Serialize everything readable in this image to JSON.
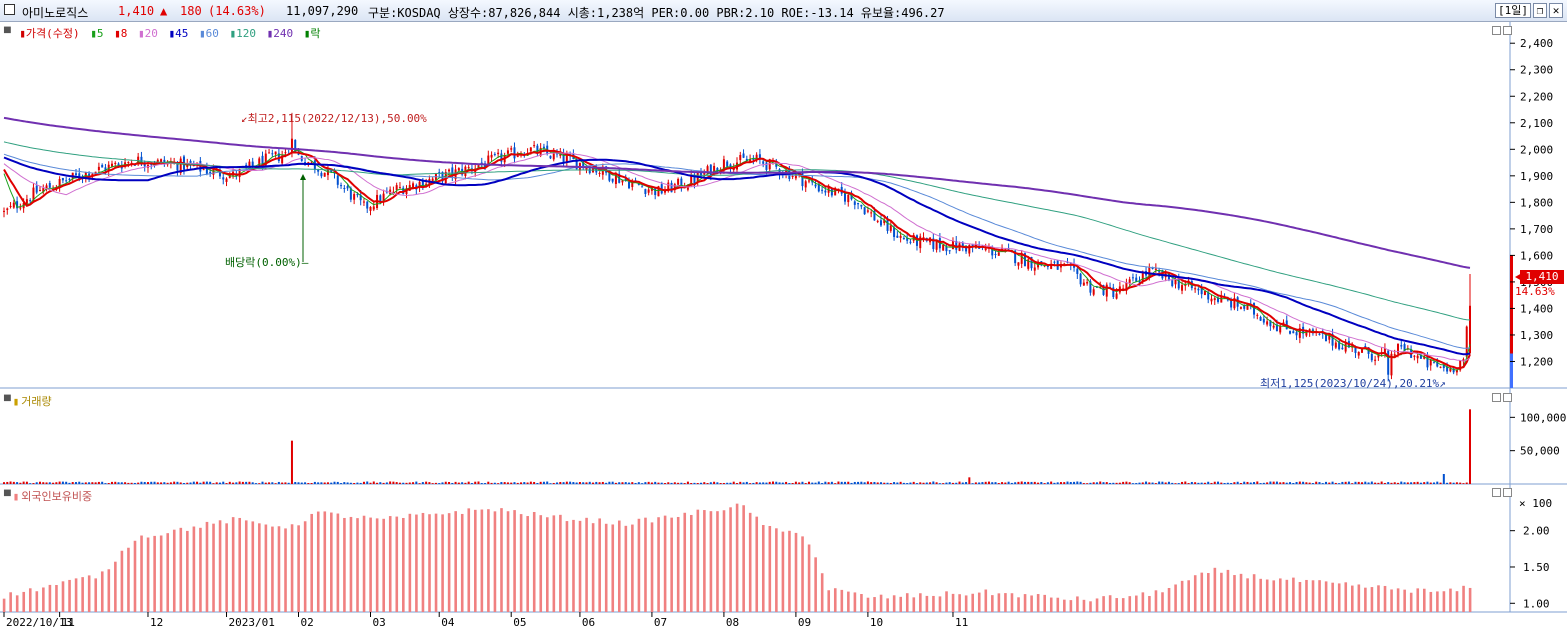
{
  "header": {
    "stock_name": "아미노로직스",
    "price": "1,410",
    "change_arrow": "▲",
    "change": "180",
    "change_pct": "(14.63%)",
    "volume": "11,097,290",
    "info": "구분:KOSDAQ 상장수:87,826,844 시총:1,238억 PER:0.00 PBR:2.10 ROE:-13.14 유보율:496.27",
    "period_button": "[1일]",
    "restore_icon": "restore-window-icon",
    "close_icon": "close-icon",
    "up_color": "#e00000"
  },
  "price_pane": {
    "legend": [
      {
        "label": "가격(수정)",
        "color": "#d00000"
      },
      {
        "label": "5",
        "color": "#1aa01a"
      },
      {
        "label": "8",
        "color": "#e00000"
      },
      {
        "label": "20",
        "color": "#d070d0"
      },
      {
        "label": "45",
        "color": "#0000c0"
      },
      {
        "label": "60",
        "color": "#5a8ad8"
      },
      {
        "label": "120",
        "color": "#30a080"
      },
      {
        "label": "240",
        "color": "#7030b0"
      },
      {
        "label": "락",
        "color": "#008000"
      }
    ],
    "y_ticks": [
      "2,400",
      "2,300",
      "2,200",
      "2,100",
      "2,000",
      "1,900",
      "1,800",
      "1,700",
      "1,600",
      "1,500",
      "1,400",
      "1,300",
      "1,200"
    ],
    "high_annotation": "최고2,115(2022/12/13),50.00%",
    "low_annotation": "최저1,125(2023/10/24),20.21%",
    "dividend_annotation": "배당락(0.00%)",
    "current_price_tag": "1,410",
    "current_pct_tag": "14.63%"
  },
  "volume_pane": {
    "title": "거래량",
    "y_ticks": [
      "100,000",
      "50,000"
    ],
    "unit": "× 100"
  },
  "foreign_pane": {
    "title": "외국인보유비중",
    "y_ticks": [
      "2.00",
      "1.50",
      "1.00"
    ]
  },
  "x_axis": {
    "labels": [
      "2022/10/13",
      "11",
      "12",
      "2023/01",
      "02",
      "03",
      "04",
      "05",
      "06",
      "07",
      "08",
      "09",
      "10",
      "11"
    ]
  },
  "chart_data": {
    "type": "candlestick",
    "price_range": [
      1100,
      2480
    ],
    "high": {
      "value": 2115,
      "date": "2022/12/13"
    },
    "low": {
      "value": 1125,
      "date": "2023/10/24"
    },
    "last_close": 1410,
    "anchors_close": [
      [
        0,
        1760
      ],
      [
        10,
        1840
      ],
      [
        25,
        1910
      ],
      [
        40,
        1960
      ],
      [
        55,
        1940
      ],
      [
        70,
        1900
      ],
      [
        80,
        1960
      ],
      [
        88,
        1990
      ],
      [
        100,
        1900
      ],
      [
        110,
        1780
      ],
      [
        120,
        1850
      ],
      [
        135,
        1900
      ],
      [
        150,
        1960
      ],
      [
        160,
        2000
      ],
      [
        170,
        1970
      ],
      [
        180,
        1930
      ],
      [
        190,
        1880
      ],
      [
        200,
        1840
      ],
      [
        210,
        1880
      ],
      [
        220,
        1950
      ],
      [
        230,
        1960
      ],
      [
        240,
        1910
      ],
      [
        250,
        1850
      ],
      [
        260,
        1810
      ],
      [
        268,
        1720
      ],
      [
        275,
        1660
      ],
      [
        285,
        1640
      ],
      [
        295,
        1630
      ],
      [
        305,
        1610
      ],
      [
        315,
        1570
      ],
      [
        325,
        1550
      ],
      [
        332,
        1480
      ],
      [
        340,
        1460
      ],
      [
        350,
        1540
      ],
      [
        358,
        1500
      ],
      [
        370,
        1440
      ],
      [
        380,
        1400
      ],
      [
        390,
        1330
      ],
      [
        400,
        1300
      ],
      [
        410,
        1260
      ],
      [
        420,
        1220
      ],
      [
        428,
        1250
      ],
      [
        435,
        1190
      ],
      [
        442,
        1170
      ],
      [
        446,
        1210
      ],
      [
        448,
        1410
      ]
    ],
    "volume_spikes": [
      [
        88,
        65000
      ],
      [
        295,
        10000
      ],
      [
        440,
        15000
      ],
      [
        448,
        112000
      ]
    ],
    "foreign_ratio_anchors": [
      [
        0,
        1.1
      ],
      [
        30,
        1.4
      ],
      [
        40,
        1.9
      ],
      [
        70,
        2.15
      ],
      [
        88,
        2.05
      ],
      [
        95,
        2.25
      ],
      [
        115,
        2.15
      ],
      [
        135,
        2.25
      ],
      [
        150,
        2.3
      ],
      [
        165,
        2.2
      ],
      [
        190,
        2.1
      ],
      [
        205,
        2.2
      ],
      [
        225,
        2.35
      ],
      [
        235,
        2.0
      ],
      [
        245,
        1.95
      ],
      [
        252,
        1.2
      ],
      [
        265,
        1.08
      ],
      [
        300,
        1.15
      ],
      [
        330,
        1.05
      ],
      [
        350,
        1.12
      ],
      [
        370,
        1.45
      ],
      [
        385,
        1.35
      ],
      [
        410,
        1.25
      ],
      [
        440,
        1.15
      ],
      [
        448,
        1.22
      ]
    ]
  }
}
